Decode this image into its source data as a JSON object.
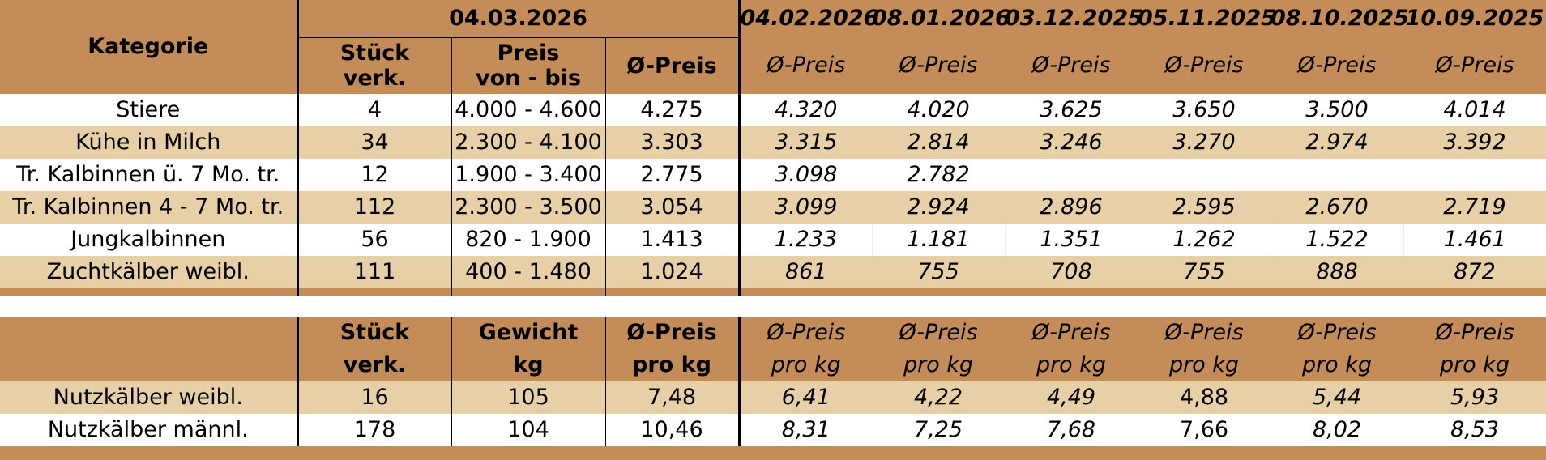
{
  "section1": {
    "kategorie_label": "Kategorie",
    "current_date": "04.03.2026",
    "col_stueck": "Stück\nverk.",
    "col_stueck_l1": "Stück",
    "col_stueck_l2": "verk.",
    "col_preis_l1": "Preis",
    "col_preis_l2": "von - bis",
    "col_avg": "Ø-Preis",
    "previous_dates": [
      "04.02.2026",
      "08.01.2026",
      "03.12.2025",
      "05.11.2025",
      "08.10.2025",
      "10.09.2025"
    ],
    "previous_label": "Ø-Preis",
    "rows": [
      {
        "kategorie": "Stiere",
        "stueck": "4",
        "preis": "4.000 - 4.600",
        "avg": "4.275",
        "prev": [
          "4.320",
          "4.020",
          "3.625",
          "3.650",
          "3.500",
          "4.014"
        ]
      },
      {
        "kategorie": "Kühe in Milch",
        "stueck": "34",
        "preis": "2.300 - 4.100",
        "avg": "3.303",
        "prev": [
          "3.315",
          "2.814",
          "3.246",
          "3.270",
          "2.974",
          "3.392"
        ]
      },
      {
        "kategorie": "Tr. Kalbinnen ü. 7 Mo. tr.",
        "stueck": "12",
        "preis": "1.900 - 3.400",
        "avg": "2.775",
        "prev": [
          "3.098",
          "2.782",
          "",
          "",
          "",
          ""
        ]
      },
      {
        "kategorie": "Tr. Kalbinnen 4 - 7 Mo. tr.",
        "stueck": "112",
        "preis": "2.300 - 3.500",
        "avg": "3.054",
        "prev": [
          "3.099",
          "2.924",
          "2.896",
          "2.595",
          "2.670",
          "2.719"
        ]
      },
      {
        "kategorie": "Jungkalbinnen",
        "stueck": "56",
        "preis": "820 - 1.900",
        "avg": "1.413",
        "prev": [
          "1.233",
          "1.181",
          "1.351",
          "1.262",
          "1.522",
          "1.461"
        ]
      },
      {
        "kategorie": "Zuchtkälber weibl.",
        "stueck": "111",
        "preis": "400 - 1.480",
        "avg": "1.024",
        "prev": [
          "861",
          "755",
          "708",
          "755",
          "888",
          "872"
        ]
      }
    ]
  },
  "section2": {
    "col_stueck_l1": "Stück",
    "col_stueck_l2": "verk.",
    "col_gewicht_l1": "Gewicht",
    "col_gewicht_l2": "kg",
    "col_avg_l1": "Ø-Preis",
    "col_avg_l2": "pro kg",
    "prev_l1": "Ø-Preis",
    "prev_l2": "pro kg",
    "rows": [
      {
        "kategorie": "Nutzkälber weibl.",
        "stueck": "16",
        "gewicht": "105",
        "avg": "7,48",
        "prev": [
          "6,41",
          "4,22",
          "4,49",
          "4,88",
          "5,44",
          "5,93"
        ],
        "prev_italic": [
          true,
          true,
          true,
          false,
          true,
          true
        ]
      },
      {
        "kategorie": "Nutzkälber männl.",
        "stueck": "178",
        "gewicht": "104",
        "avg": "10,46",
        "prev": [
          "8,31",
          "7,25",
          "7,68",
          "7,66",
          "8,02",
          "8,53"
        ],
        "prev_italic": [
          true,
          true,
          true,
          false,
          true,
          true
        ]
      }
    ]
  },
  "colors": {
    "header_brown": "#c48c58",
    "row_tan": "#e7cfa8",
    "row_white": "#ffffff"
  }
}
